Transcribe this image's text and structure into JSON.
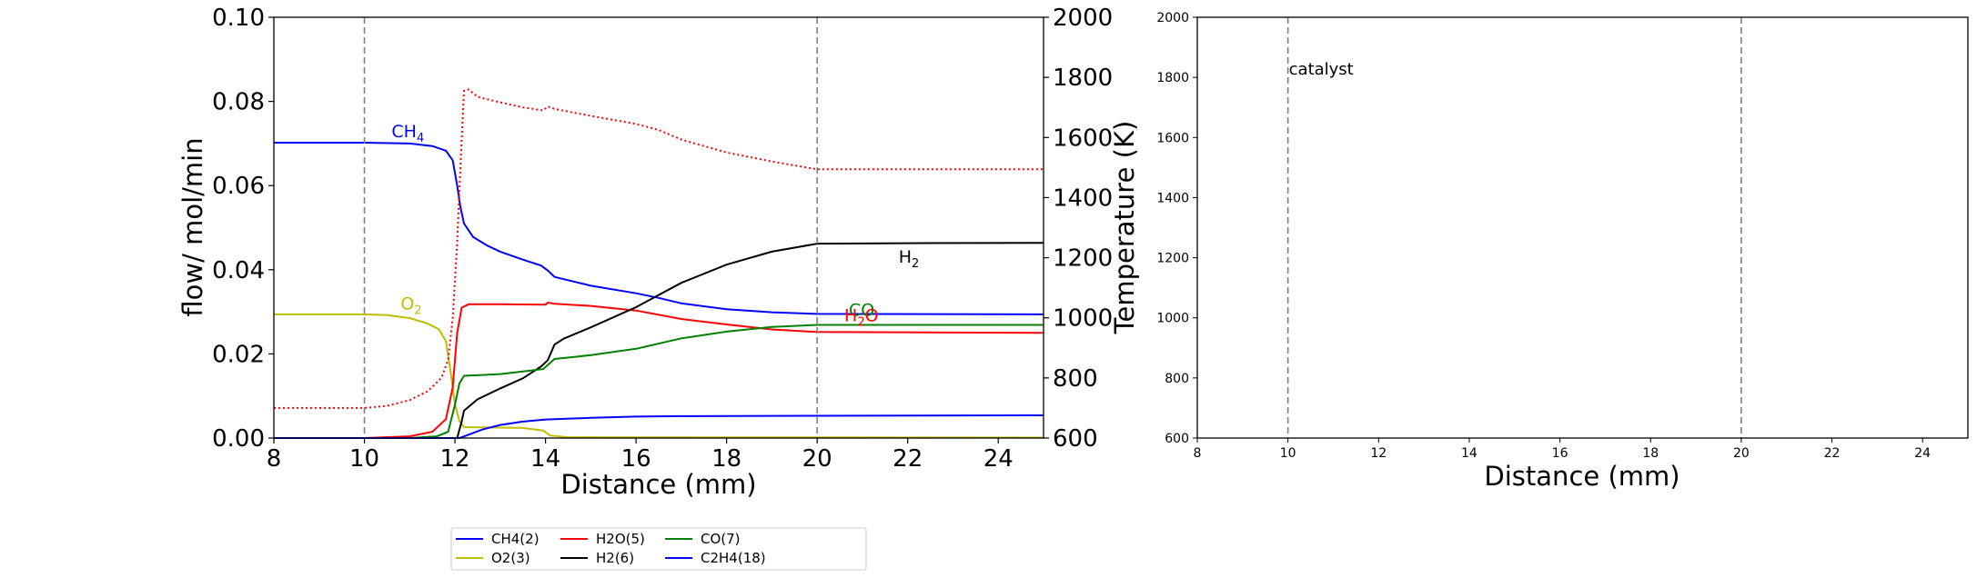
{
  "chart_data": [
    {
      "type": "line",
      "xlabel": "Distance (mm)",
      "ylabel": "flow/ mol/min",
      "ylabel_right": "Temperature (K)",
      "xlim": [
        8,
        25
      ],
      "ylim": [
        0,
        0.1
      ],
      "ylim_right": [
        600,
        2000
      ],
      "x_ticks": [
        8,
        10,
        12,
        14,
        16,
        18,
        20,
        22,
        24
      ],
      "y_ticks": [
        0.0,
        0.02,
        0.04,
        0.06,
        0.08,
        0.1
      ],
      "y_tick_labels": [
        "0.00",
        "0.02",
        "0.04",
        "0.06",
        "0.08",
        "0.10"
      ],
      "y_right_ticks": [
        600,
        800,
        1000,
        1200,
        1400,
        1600,
        1800,
        2000
      ],
      "vlines": [
        10,
        20
      ],
      "grid": false,
      "series": [
        {
          "name": "CH4(2)",
          "color": "#0000ff",
          "axis": "left",
          "points": [
            [
              8,
              0.0702
            ],
            [
              10,
              0.0702
            ],
            [
              11,
              0.07
            ],
            [
              11.5,
              0.0694
            ],
            [
              11.8,
              0.0683
            ],
            [
              11.95,
              0.066
            ],
            [
              12.05,
              0.06
            ],
            [
              12.12,
              0.055
            ],
            [
              12.2,
              0.051
            ],
            [
              12.4,
              0.0478
            ],
            [
              12.7,
              0.0458
            ],
            [
              13,
              0.0443
            ],
            [
              13.5,
              0.0424
            ],
            [
              13.9,
              0.041
            ],
            [
              14.05,
              0.0398
            ],
            [
              14.2,
              0.0383
            ],
            [
              15,
              0.0362
            ],
            [
              16,
              0.0344
            ],
            [
              16.5,
              0.0333
            ],
            [
              17,
              0.032
            ],
            [
              18,
              0.0306
            ],
            [
              19,
              0.0299
            ],
            [
              20,
              0.0295
            ],
            [
              25,
              0.0294
            ]
          ]
        },
        {
          "name": "O2(3)",
          "color": "#bfbf00",
          "axis": "left",
          "points": [
            [
              8,
              0.0294
            ],
            [
              10,
              0.0294
            ],
            [
              10.5,
              0.0292
            ],
            [
              11,
              0.0285
            ],
            [
              11.4,
              0.0272
            ],
            [
              11.65,
              0.0258
            ],
            [
              11.8,
              0.023
            ],
            [
              11.9,
              0.016
            ],
            [
              12.0,
              0.008
            ],
            [
              12.1,
              0.004
            ],
            [
              12.2,
              0.0026
            ],
            [
              13.5,
              0.0024
            ],
            [
              13.95,
              0.0018
            ],
            [
              14.1,
              0.0006
            ],
            [
              14.5,
              0.0002
            ],
            [
              25,
              0.0001
            ]
          ]
        },
        {
          "name": "H2O(5)",
          "color": "#ff0000",
          "axis": "left",
          "points": [
            [
              8,
              0.0
            ],
            [
              10,
              0.0
            ],
            [
              11,
              0.0004
            ],
            [
              11.5,
              0.0015
            ],
            [
              11.8,
              0.0045
            ],
            [
              11.95,
              0.012
            ],
            [
              12.05,
              0.025
            ],
            [
              12.15,
              0.031
            ],
            [
              12.3,
              0.0318
            ],
            [
              13,
              0.0318
            ],
            [
              14,
              0.0317
            ],
            [
              14.05,
              0.0322
            ],
            [
              14.2,
              0.0319
            ],
            [
              15,
              0.0314
            ],
            [
              16,
              0.0303
            ],
            [
              17,
              0.0283
            ],
            [
              18,
              0.027
            ],
            [
              19,
              0.0258
            ],
            [
              20,
              0.0252
            ],
            [
              25,
              0.025
            ]
          ]
        },
        {
          "name": "H2(6)",
          "color": "#000000",
          "axis": "left",
          "points": [
            [
              8,
              0.0
            ],
            [
              12.05,
              0.0
            ],
            [
              12.15,
              0.004
            ],
            [
              12.2,
              0.0065
            ],
            [
              12.5,
              0.0092
            ],
            [
              13,
              0.0118
            ],
            [
              13.5,
              0.0142
            ],
            [
              13.9,
              0.017
            ],
            [
              14.05,
              0.0185
            ],
            [
              14.2,
              0.0222
            ],
            [
              14.4,
              0.0236
            ],
            [
              15,
              0.0263
            ],
            [
              16,
              0.0311
            ],
            [
              17,
              0.0369
            ],
            [
              18,
              0.0412
            ],
            [
              19,
              0.0443
            ],
            [
              20,
              0.0462
            ],
            [
              22,
              0.0463
            ],
            [
              25,
              0.0464
            ]
          ]
        },
        {
          "name": "CO(7)",
          "color": "#008000",
          "axis": "left",
          "points": [
            [
              8,
              0.0
            ],
            [
              11,
              0.0
            ],
            [
              11.6,
              0.0004
            ],
            [
              11.85,
              0.0015
            ],
            [
              12.0,
              0.008
            ],
            [
              12.1,
              0.013
            ],
            [
              12.2,
              0.0148
            ],
            [
              12.6,
              0.015
            ],
            [
              13,
              0.0152
            ],
            [
              13.5,
              0.0158
            ],
            [
              13.95,
              0.0164
            ],
            [
              14.2,
              0.0188
            ],
            [
              15,
              0.0197
            ],
            [
              16,
              0.0212
            ],
            [
              17,
              0.0237
            ],
            [
              18,
              0.0253
            ],
            [
              19,
              0.0264
            ],
            [
              20,
              0.0269
            ],
            [
              25,
              0.0269
            ]
          ]
        },
        {
          "name": "C2H4(18)",
          "color": "#0000ff",
          "axis": "left",
          "points": [
            [
              8,
              0.0
            ],
            [
              12.1,
              0.0
            ],
            [
              12.3,
              0.0008
            ],
            [
              12.6,
              0.002
            ],
            [
              13,
              0.0031
            ],
            [
              13.5,
              0.0039
            ],
            [
              14,
              0.0044
            ],
            [
              15,
              0.0048
            ],
            [
              16,
              0.0051
            ],
            [
              17,
              0.0052
            ],
            [
              20,
              0.0053
            ],
            [
              25,
              0.0054
            ]
          ]
        },
        {
          "name": "Temperature",
          "color": "#ff0000",
          "dash": "dotted",
          "axis": "right",
          "points": [
            [
              8,
              700
            ],
            [
              9,
              700
            ],
            [
              10,
              700
            ],
            [
              10.5,
              707
            ],
            [
              11,
              726
            ],
            [
              11.4,
              756
            ],
            [
              11.7,
              800
            ],
            [
              11.85,
              860
            ],
            [
              11.95,
              1000
            ],
            [
              12.05,
              1250
            ],
            [
              12.12,
              1500
            ],
            [
              12.2,
              1755
            ],
            [
              12.3,
              1760
            ],
            [
              12.5,
              1735
            ],
            [
              13,
              1717
            ],
            [
              13.5,
              1700
            ],
            [
              13.95,
              1690
            ],
            [
              14.05,
              1703
            ],
            [
              14.2,
              1695
            ],
            [
              15,
              1672
            ],
            [
              16,
              1645
            ],
            [
              16.5,
              1625
            ],
            [
              17,
              1593
            ],
            [
              18,
              1550
            ],
            [
              19,
              1520
            ],
            [
              20,
              1494
            ],
            [
              25,
              1494
            ]
          ]
        }
      ],
      "annotations": [
        {
          "text": "CH",
          "sub": "4",
          "x": 10.6,
          "y": 0.0715,
          "color": "#0000ff"
        },
        {
          "text": "O",
          "sub": "2",
          "x": 10.8,
          "y": 0.0306,
          "color": "#bfbf00"
        },
        {
          "text": "H",
          "sub": "2",
          "x": 21.8,
          "y": 0.0417,
          "color": "#000000"
        },
        {
          "text": "CO",
          "sub": "",
          "x": 20.7,
          "y": 0.0291,
          "color": "#008000"
        },
        {
          "text": "H",
          "sub": "2",
          "tail": "O",
          "x": 20.6,
          "y": 0.0278,
          "color": "#ff0000"
        }
      ]
    },
    {
      "type": "line",
      "xlabel": "Distance (mm)",
      "xlim": [
        8,
        25
      ],
      "ylim": [
        600,
        2000
      ],
      "x_ticks": [
        8,
        10,
        12,
        14,
        16,
        18,
        20,
        22,
        24
      ],
      "y_ticks": [
        600,
        800,
        1000,
        1200,
        1400,
        1600,
        1800,
        2000
      ],
      "vlines": [
        10,
        20
      ],
      "grid": false,
      "series": [],
      "annotations": [
        {
          "text": "catalyst",
          "x": 10,
          "y": 1810,
          "color": "#000000"
        }
      ]
    }
  ],
  "legend": {
    "placement": "bottom",
    "columns": 4,
    "entries": [
      {
        "label": "CH4(2)",
        "color": "#0000ff"
      },
      {
        "label": "O2(3)",
        "color": "#bfbf00"
      },
      {
        "label": "H2O(5)",
        "color": "#ff0000"
      },
      {
        "label": "H2(6)",
        "color": "#000000"
      },
      {
        "label": "CO(7)",
        "color": "#008000"
      },
      {
        "label": "C2H4(18)",
        "color": "#0000ff"
      }
    ]
  }
}
